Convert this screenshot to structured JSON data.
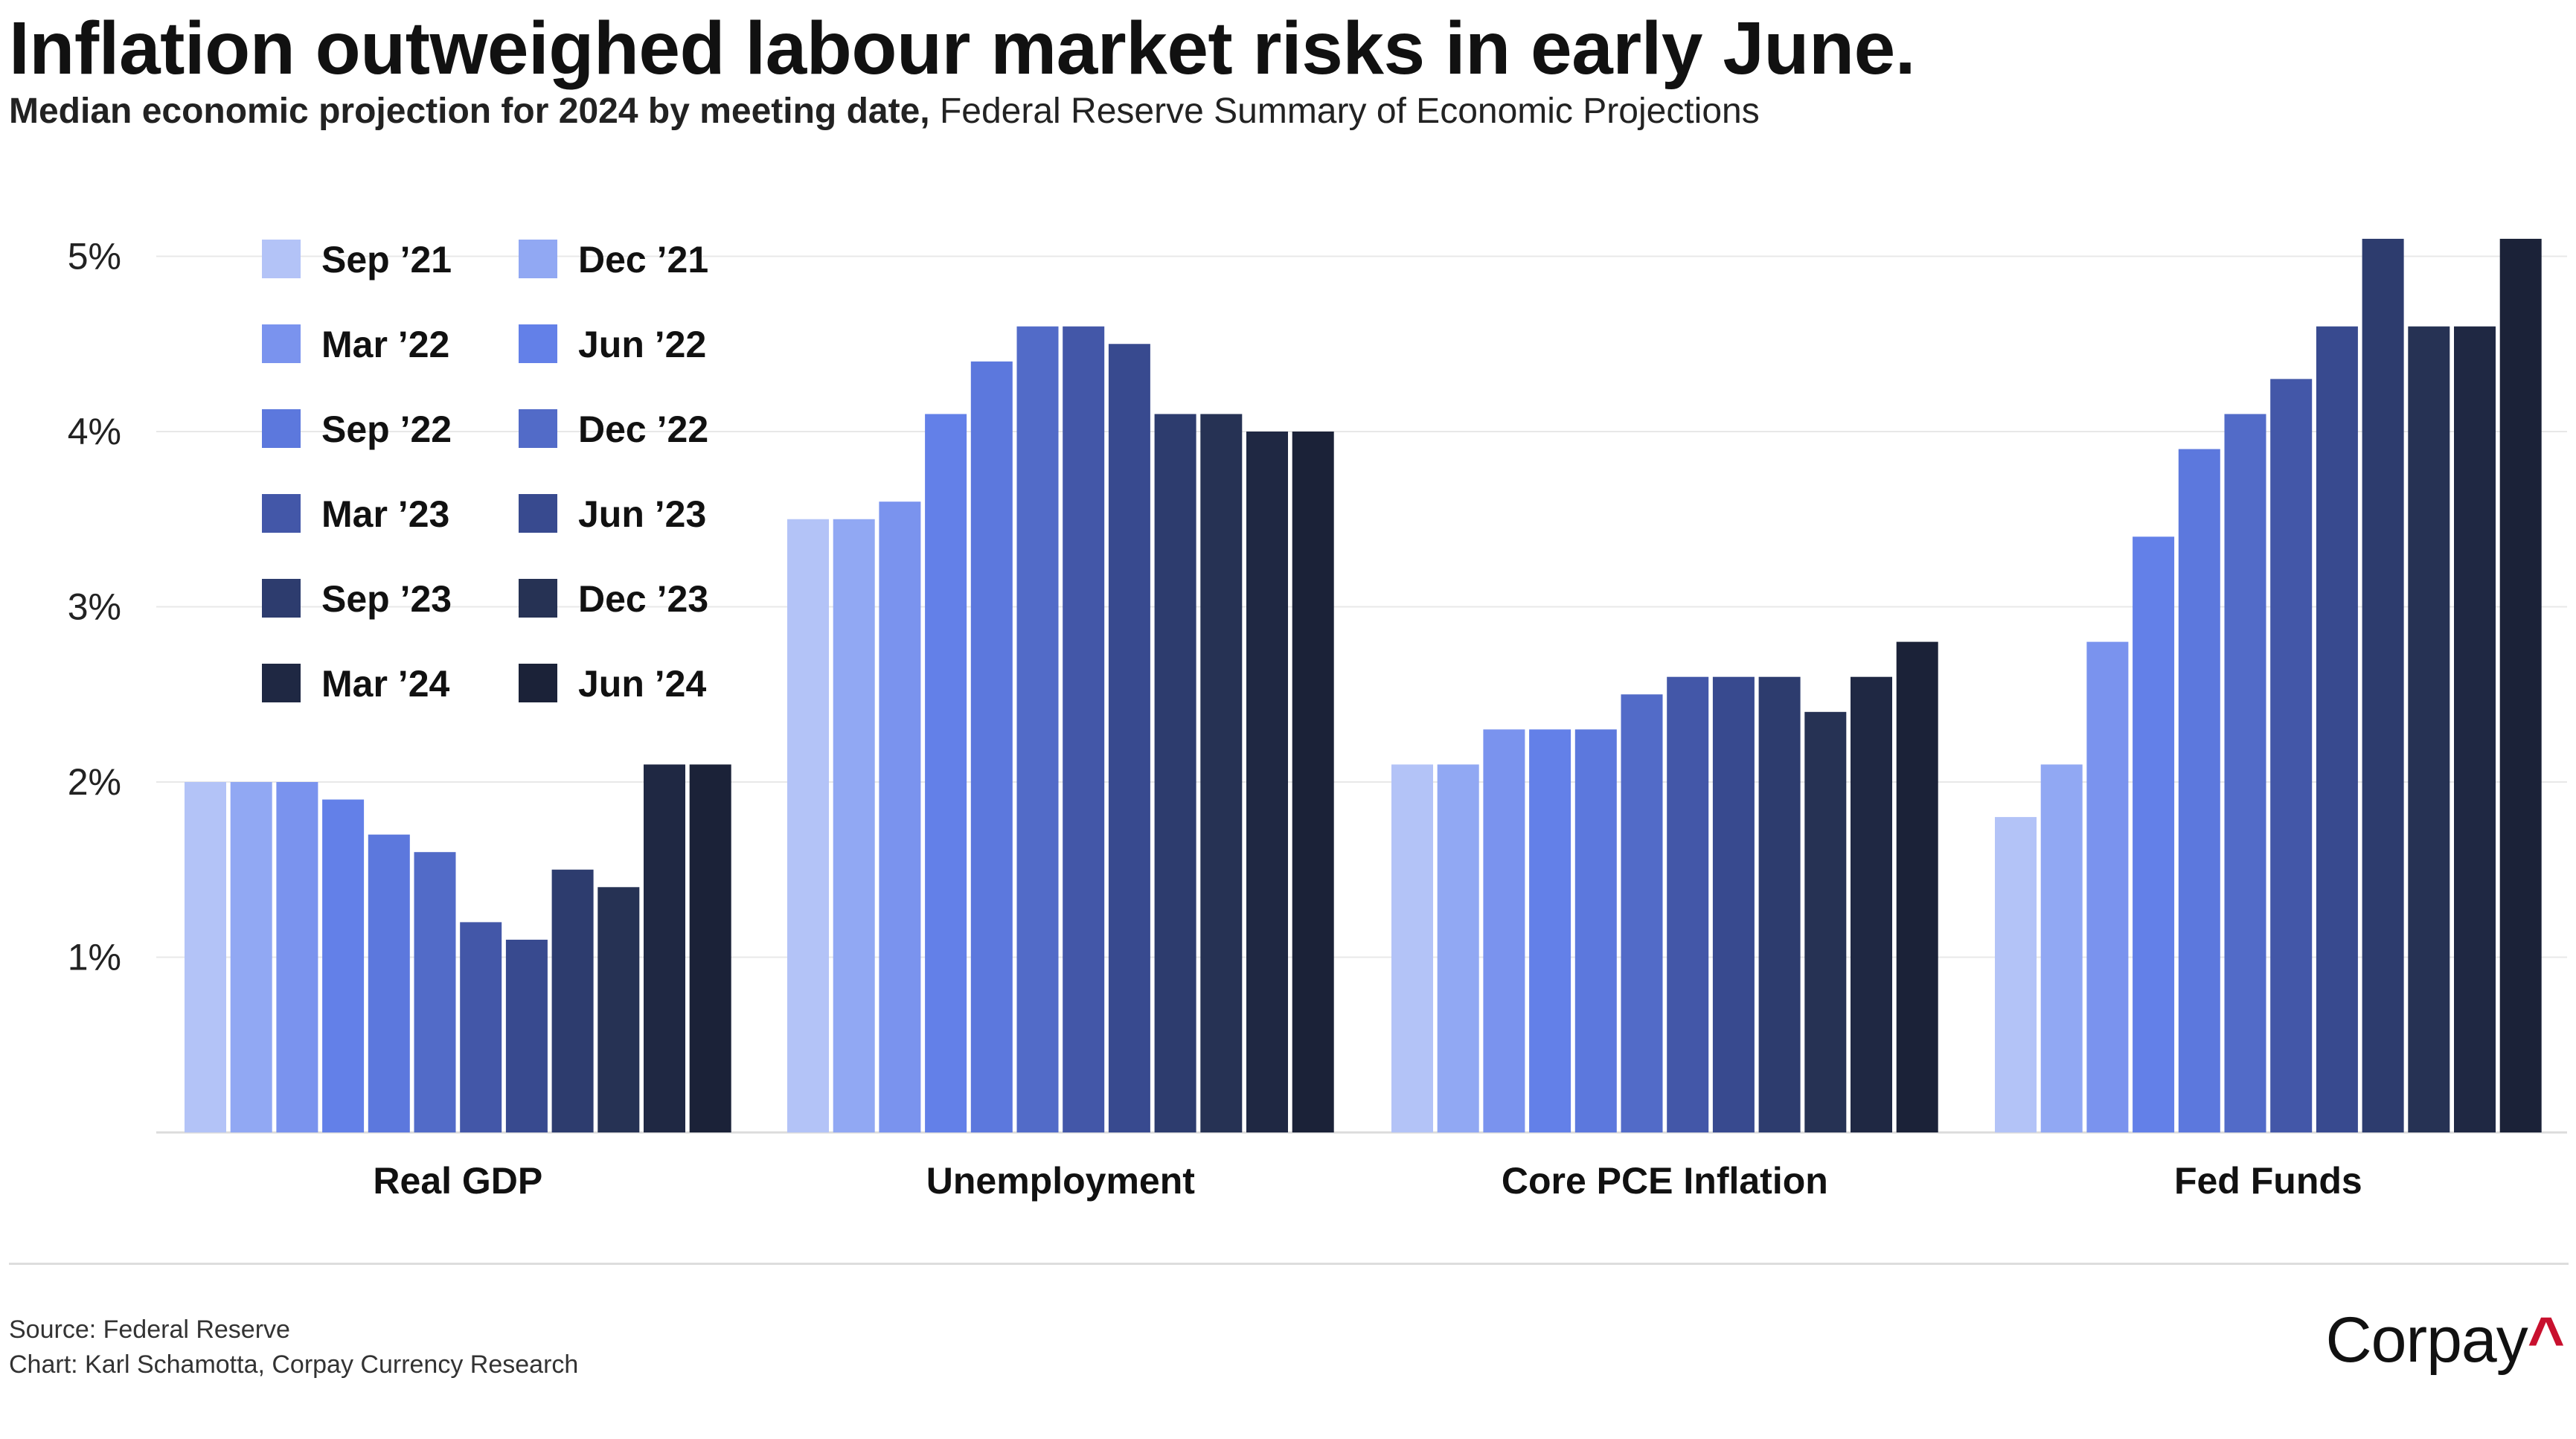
{
  "title": "Inflation outweighed labour market risks in early June.",
  "subtitle_bold": "Median economic projection for 2024 by meeting date,",
  "subtitle_rest": " Federal Reserve Summary of Economic Projections",
  "footer": {
    "source": "Source: Federal Reserve",
    "chart_credit": "Chart: Karl Schamotta, Corpay Currency Research"
  },
  "logo": {
    "text": "Corpay",
    "mark": "^",
    "mark_color": "#c8102e"
  },
  "chart_data": {
    "type": "bar",
    "title": "Inflation outweighed labour market risks in early June.",
    "categories": [
      "Real GDP",
      "Unemployment",
      "Core PCE Inflation",
      "Fed Funds"
    ],
    "ylim": [
      0,
      5.2
    ],
    "yticks": [
      1,
      2,
      3,
      4,
      5
    ],
    "ytick_labels": [
      "1%",
      "2%",
      "3%",
      "4%",
      "5%"
    ],
    "grid": true,
    "legend_placement": "top-left",
    "series": [
      {
        "name": "Sep ’21",
        "color": "#b3c3f7",
        "values": [
          2.0,
          3.5,
          2.1,
          1.8
        ]
      },
      {
        "name": "Dec ’21",
        "color": "#91a8f3",
        "values": [
          2.0,
          3.5,
          2.1,
          2.1
        ]
      },
      {
        "name": "Mar ’22",
        "color": "#7a93ee",
        "values": [
          2.0,
          3.6,
          2.3,
          2.8
        ]
      },
      {
        "name": "Jun ’22",
        "color": "#6380e8",
        "values": [
          1.9,
          4.1,
          2.3,
          3.4
        ]
      },
      {
        "name": "Sep ’22",
        "color": "#5c78dd",
        "values": [
          1.7,
          4.4,
          2.3,
          3.9
        ]
      },
      {
        "name": "Dec ’22",
        "color": "#526bc8",
        "values": [
          1.6,
          4.6,
          2.5,
          4.1
        ]
      },
      {
        "name": "Mar ’23",
        "color": "#4357a8",
        "values": [
          1.2,
          4.6,
          2.6,
          4.3
        ]
      },
      {
        "name": "Jun ’23",
        "color": "#384a8f",
        "values": [
          1.1,
          4.5,
          2.6,
          4.6
        ]
      },
      {
        "name": "Sep ’23",
        "color": "#2d3c6e",
        "values": [
          1.5,
          4.1,
          2.6,
          5.1
        ]
      },
      {
        "name": "Dec ’23",
        "color": "#263254",
        "values": [
          1.4,
          4.1,
          2.4,
          4.6
        ]
      },
      {
        "name": "Mar ’24",
        "color": "#1f2843",
        "values": [
          2.1,
          4.0,
          2.6,
          4.6
        ]
      },
      {
        "name": "Jun ’24",
        "color": "#1b2238",
        "values": [
          2.1,
          4.0,
          2.8,
          5.1
        ]
      }
    ]
  }
}
